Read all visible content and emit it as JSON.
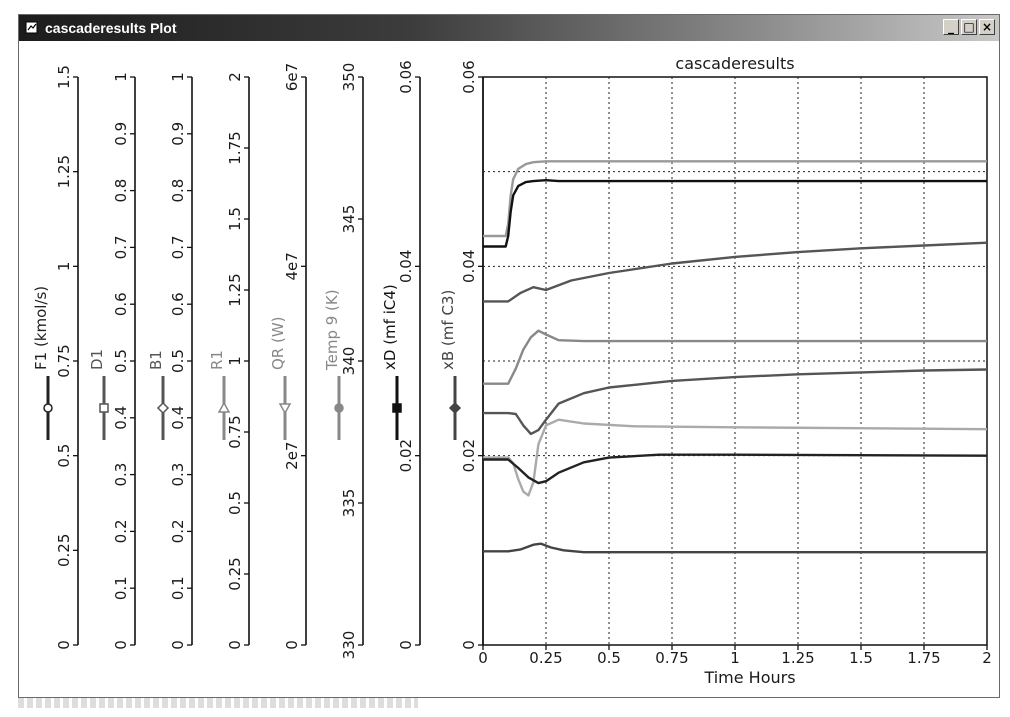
{
  "window": {
    "title": "cascaderesults Plot",
    "controls": {
      "minimize": "_",
      "maximize": "□",
      "close": "×"
    }
  },
  "chart_data": {
    "type": "line",
    "title": "cascaderesults",
    "xlabel": "Time Hours",
    "xlim": [
      0,
      2
    ],
    "x_ticks": [
      "0",
      "0.25",
      "0.5",
      "0.75",
      "1",
      "1.25",
      "1.5",
      "1.75",
      "2"
    ],
    "grid": "dotted",
    "axes": [
      {
        "name": "F1 (kmol/s)",
        "marker": "circle",
        "color": "#222222",
        "range": [
          0,
          1.5
        ],
        "ticks": [
          "0",
          "0.25",
          "0.5",
          "0.75",
          "1",
          "1.25",
          "1.5"
        ]
      },
      {
        "name": "D1",
        "marker": "square",
        "color": "#555555",
        "range": [
          0,
          1
        ],
        "ticks": [
          "0",
          "0.1",
          "0.2",
          "0.3",
          "0.4",
          "0.5",
          "0.6",
          "0.7",
          "0.8",
          "0.9",
          "1"
        ]
      },
      {
        "name": "B1",
        "marker": "diamond",
        "color": "#555555",
        "range": [
          0,
          1
        ],
        "ticks": [
          "0",
          "0.1",
          "0.2",
          "0.3",
          "0.4",
          "0.5",
          "0.6",
          "0.7",
          "0.8",
          "0.9",
          "1"
        ]
      },
      {
        "name": "R1",
        "marker": "triangle-up",
        "color": "#888888",
        "range": [
          0,
          2
        ],
        "ticks": [
          "0",
          "0.25",
          "0.5",
          "0.75",
          "1",
          "1.25",
          "1.5",
          "1.75",
          "2"
        ]
      },
      {
        "name": "QR (W)",
        "marker": "triangle-down",
        "color": "#888888",
        "range": [
          0,
          60000000.0
        ],
        "ticks": [
          "0",
          "2e7",
          "4e7",
          "6e7"
        ]
      },
      {
        "name": "Temp 9 (K)",
        "marker": "circle-filled",
        "color": "#888888",
        "range": [
          330,
          350
        ],
        "ticks": [
          "330",
          "335",
          "340",
          "345",
          "350"
        ]
      },
      {
        "name": "xD (mf iC4)",
        "marker": "square-filled",
        "color": "#111111",
        "range": [
          0,
          0.06
        ],
        "ticks": [
          "0",
          "0.02",
          "0.04",
          "0.06"
        ]
      },
      {
        "name": "xB (mf C3)",
        "marker": "diamond-filled",
        "color": "#444444",
        "range": [
          0,
          0.06
        ],
        "ticks": [
          "0",
          "0.02",
          "0.04",
          "0.06"
        ]
      }
    ],
    "plot_y_range": [
      0,
      0.06
    ],
    "plot_y_ticks": [
      "0",
      "0.02",
      "0.04",
      "0.06"
    ],
    "series": [
      {
        "color": "#999999",
        "x": [
          0,
          0.09,
          0.1,
          0.11,
          0.12,
          0.14,
          0.17,
          0.2,
          0.25,
          0.3,
          0.5,
          1,
          2
        ],
        "y": [
          0.0432,
          0.0432,
          0.0445,
          0.0475,
          0.0492,
          0.0503,
          0.0508,
          0.051,
          0.0511,
          0.0511,
          0.0511,
          0.0511,
          0.0511
        ]
      },
      {
        "color": "#111111",
        "x": [
          0,
          0.09,
          0.1,
          0.11,
          0.12,
          0.14,
          0.17,
          0.2,
          0.25,
          0.3,
          0.5,
          1,
          2
        ],
        "y": [
          0.0421,
          0.0421,
          0.0432,
          0.0458,
          0.0475,
          0.0485,
          0.0489,
          0.049,
          0.0491,
          0.049,
          0.049,
          0.049,
          0.049
        ]
      },
      {
        "color": "#555555",
        "x": [
          0,
          0.1,
          0.15,
          0.2,
          0.25,
          0.35,
          0.5,
          0.75,
          1,
          1.25,
          1.5,
          1.75,
          2
        ],
        "y": [
          0.0363,
          0.0363,
          0.0372,
          0.0378,
          0.0375,
          0.0385,
          0.0393,
          0.0403,
          0.041,
          0.0415,
          0.0419,
          0.0422,
          0.0425
        ]
      },
      {
        "color": "#888888",
        "x": [
          0,
          0.1,
          0.13,
          0.16,
          0.19,
          0.22,
          0.25,
          0.3,
          0.4,
          0.6,
          1,
          2
        ],
        "y": [
          0.0276,
          0.0276,
          0.0292,
          0.0312,
          0.0325,
          0.0332,
          0.0328,
          0.0322,
          0.0321,
          0.0321,
          0.0321,
          0.0321
        ]
      },
      {
        "color": "#555555",
        "x": [
          0,
          0.1,
          0.13,
          0.16,
          0.19,
          0.22,
          0.25,
          0.3,
          0.4,
          0.5,
          0.75,
          1,
          1.25,
          1.5,
          1.75,
          2
        ],
        "y": [
          0.0245,
          0.0245,
          0.0244,
          0.0232,
          0.0223,
          0.0227,
          0.0238,
          0.0255,
          0.0266,
          0.0272,
          0.0279,
          0.0283,
          0.0286,
          0.0288,
          0.029,
          0.0291
        ]
      },
      {
        "color": "#aaaaaa",
        "x": [
          0,
          0.1,
          0.12,
          0.14,
          0.16,
          0.18,
          0.2,
          0.22,
          0.25,
          0.3,
          0.4,
          0.6,
          1,
          2
        ],
        "y": [
          0.0198,
          0.0198,
          0.0192,
          0.0175,
          0.0162,
          0.0158,
          0.0172,
          0.0212,
          0.0232,
          0.0238,
          0.0234,
          0.0231,
          0.023,
          0.0228
        ]
      },
      {
        "color": "#222222",
        "x": [
          0,
          0.1,
          0.14,
          0.18,
          0.22,
          0.25,
          0.3,
          0.4,
          0.5,
          0.7,
          1,
          2
        ],
        "y": [
          0.0196,
          0.0196,
          0.0187,
          0.0177,
          0.0171,
          0.0173,
          0.0182,
          0.0193,
          0.0198,
          0.0201,
          0.0201,
          0.02
        ]
      },
      {
        "color": "#444444",
        "x": [
          0,
          0.1,
          0.15,
          0.2,
          0.23,
          0.27,
          0.32,
          0.4,
          0.6,
          1,
          2
        ],
        "y": [
          0.0099,
          0.0099,
          0.0101,
          0.0106,
          0.0107,
          0.0103,
          0.01,
          0.0098,
          0.0098,
          0.0098,
          0.0098
        ]
      }
    ]
  }
}
